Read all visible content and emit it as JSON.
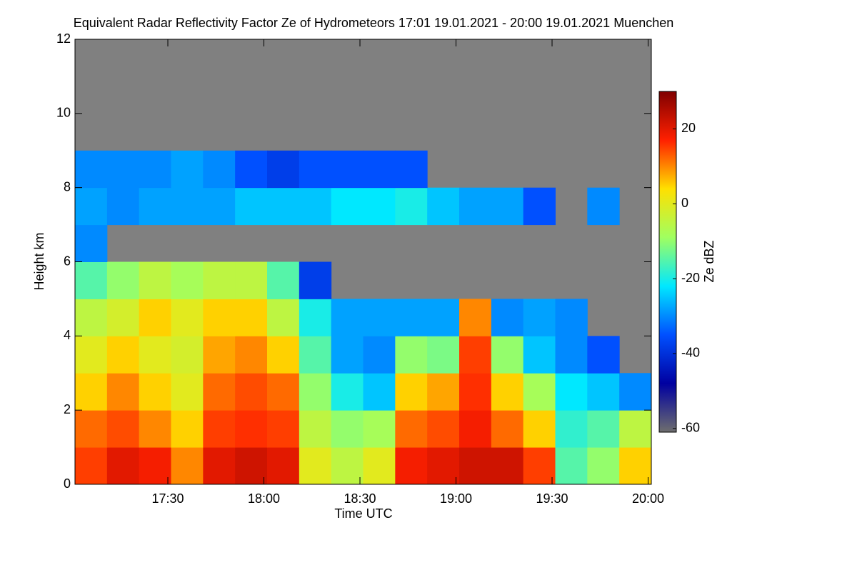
{
  "chart_data": {
    "type": "heatmap",
    "title": "Equivalent Radar Reflectivity Factor Ze of Hydrometeors   17:01 19.01.2021 - 20:00 19.01.2021 Muenchen",
    "xlabel": "Time UTC",
    "ylabel": "Height km",
    "colorbar_label": "Ze dBZ",
    "x": [
      1021,
      1031,
      1041,
      1051,
      1061,
      1071,
      1081,
      1091,
      1101,
      1111,
      1121,
      1131,
      1141,
      1151,
      1161,
      1171,
      1181,
      1191,
      1201
    ],
    "y": [
      0,
      1,
      2,
      3,
      4,
      5,
      6,
      7,
      8,
      9,
      10,
      11,
      12
    ],
    "values": [
      [
        15,
        20,
        18,
        10,
        20,
        22,
        20,
        0,
        -5,
        0,
        18,
        20,
        22,
        22,
        15,
        -15,
        -10,
        5
      ],
      [
        12,
        14,
        10,
        5,
        15,
        16,
        15,
        -5,
        -10,
        -8,
        12,
        14,
        18,
        12,
        5,
        -18,
        -15,
        -5
      ],
      [
        5,
        10,
        5,
        0,
        12,
        14,
        12,
        -10,
        -20,
        -25,
        5,
        8,
        16,
        5,
        -8,
        -22,
        -25,
        -30
      ],
      [
        0,
        5,
        0,
        -2,
        8,
        10,
        5,
        -15,
        -28,
        -30,
        -10,
        -12,
        15,
        -10,
        -25,
        -30,
        -35,
        null
      ],
      [
        -5,
        -2,
        5,
        0,
        5,
        5,
        -5,
        -20,
        -28,
        -28,
        -28,
        -28,
        10,
        -30,
        -28,
        -30,
        null,
        null
      ],
      [
        -15,
        -10,
        -5,
        -8,
        -5,
        -5,
        -15,
        -38,
        null,
        null,
        null,
        null,
        null,
        null,
        null,
        null,
        null,
        null
      ],
      [
        -30,
        null,
        null,
        null,
        null,
        null,
        null,
        null,
        null,
        null,
        null,
        null,
        null,
        null,
        null,
        null,
        null,
        null
      ],
      [
        -28,
        -30,
        -28,
        -28,
        -28,
        -25,
        -25,
        -25,
        -22,
        -22,
        -20,
        -25,
        -28,
        -28,
        -35,
        null,
        -30,
        null
      ],
      [
        -30,
        -30,
        -30,
        -28,
        -30,
        -35,
        -38,
        -35,
        -35,
        -35,
        -35,
        null,
        null,
        null,
        null,
        null,
        null,
        null
      ],
      [
        null,
        null,
        null,
        null,
        null,
        null,
        null,
        null,
        null,
        null,
        null,
        null,
        null,
        null,
        null,
        null,
        null,
        null
      ],
      [
        null,
        null,
        null,
        null,
        null,
        null,
        null,
        null,
        null,
        null,
        null,
        null,
        null,
        null,
        null,
        null,
        null,
        null
      ],
      [
        null,
        null,
        null,
        null,
        null,
        null,
        null,
        null,
        null,
        null,
        null,
        null,
        null,
        null,
        null,
        null,
        null,
        null
      ]
    ],
    "xlim": [
      1021,
      1201
    ],
    "xticks": [
      {
        "value": 1050,
        "label": "17:30"
      },
      {
        "value": 1080,
        "label": "18:00"
      },
      {
        "value": 1110,
        "label": "18:30"
      },
      {
        "value": 1140,
        "label": "19:00"
      },
      {
        "value": 1170,
        "label": "19:30"
      },
      {
        "value": 1200,
        "label": "20:00"
      }
    ],
    "ylim": [
      0,
      12
    ],
    "yticks": [
      0,
      2,
      4,
      6,
      8,
      10,
      12
    ],
    "clim": [
      -61,
      30
    ],
    "cticks": [
      -60,
      -40,
      -20,
      0,
      20
    ],
    "colormap": [
      "#6e6e6e",
      "#0000a0",
      "#0050ff",
      "#00e8ff",
      "#a0ff60",
      "#ffe000",
      "#ff2000",
      "#800000"
    ],
    "background": "#808080"
  }
}
